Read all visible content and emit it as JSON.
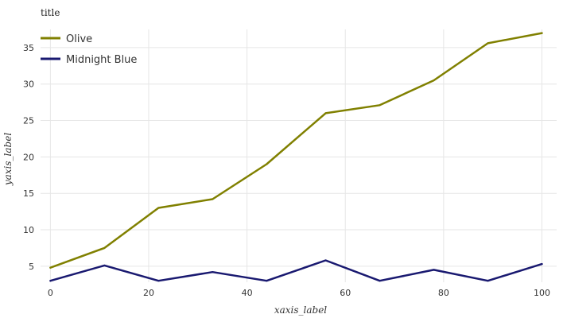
{
  "chart_data": {
    "type": "line",
    "title": "title",
    "xlabel": "xaxis_label",
    "ylabel": "yaxis_label",
    "xlim": [
      -2,
      103
    ],
    "ylim": [
      2.8,
      37.5
    ],
    "xticks": [
      0,
      20,
      40,
      60,
      80,
      100
    ],
    "yticks": [
      5,
      10,
      15,
      20,
      25,
      30,
      35
    ],
    "grid": true,
    "legend_placement": "top-left",
    "series": [
      {
        "name": "Olive",
        "color": "#808000",
        "x": [
          0,
          11,
          22,
          33,
          44,
          56,
          67,
          78,
          89,
          100
        ],
        "y": [
          4.8,
          7.5,
          13.0,
          14.2,
          19.0,
          26.0,
          27.1,
          30.5,
          35.6,
          37.0
        ]
      },
      {
        "name": "Midnight Blue",
        "color": "#191970",
        "x": [
          0,
          11,
          22,
          33,
          44,
          56,
          67,
          78,
          89,
          100
        ],
        "y": [
          3.0,
          5.1,
          3.0,
          4.2,
          3.0,
          5.8,
          3.0,
          4.5,
          3.0,
          5.3
        ]
      }
    ]
  }
}
